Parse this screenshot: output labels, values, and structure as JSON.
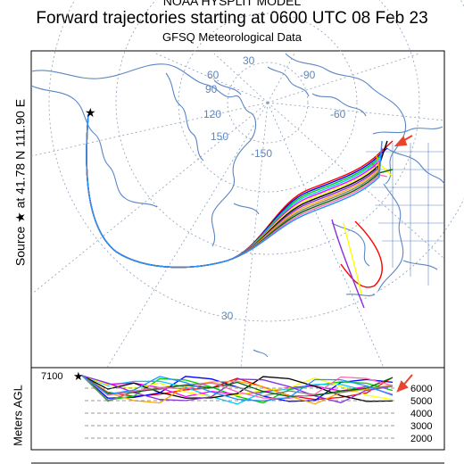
{
  "header": {
    "model": "NOAA HYSPLIT MODEL",
    "title": "Forward trajectories starting at 0600 UTC 08 Feb 23",
    "subtitle": "GFSQ Meteorological Data"
  },
  "source_label": "Source ★ at  41.78 N  111.90 E",
  "map": {
    "grid_labels": [
      "30",
      "60",
      "90",
      "120",
      "150",
      "-150",
      "-90",
      "-60",
      "30"
    ],
    "source_marker": "star-icon",
    "endpoint_marker": "arrow-icon",
    "trajectory_colors": [
      "#ff0000",
      "#0000ff",
      "#00cc00",
      "#00ccff",
      "#ff00ff",
      "#ffff00",
      "#000000",
      "#8a2be2",
      "#ffa500",
      "#808080",
      "#006400",
      "#ff69b4",
      "#1e90ff"
    ]
  },
  "altitude_panel": {
    "y_axis_label": "Meters AGL",
    "top_label": "7100",
    "ticks": [
      "6000",
      "5000",
      "4000",
      "3000",
      "2000"
    ]
  },
  "colors": {
    "coast": "#5b86c4",
    "grid": "#8c9fb8",
    "arrow": "#e8452c"
  }
}
